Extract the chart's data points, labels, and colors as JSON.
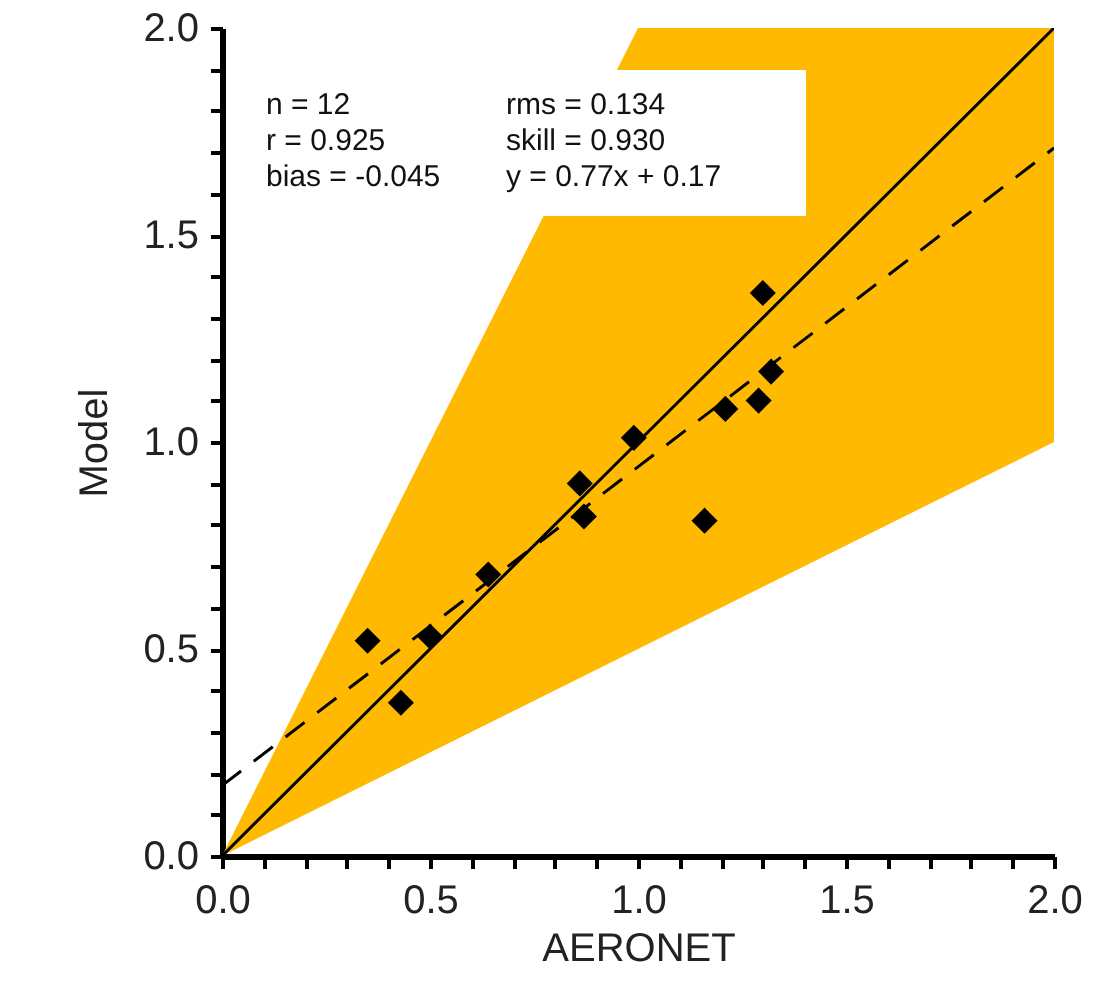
{
  "chart_data": {
    "type": "scatter",
    "xlabel": "AERONET",
    "ylabel": "Model",
    "xlim": [
      0,
      2
    ],
    "ylim": [
      0,
      2
    ],
    "xticks": [
      {
        "value": 0,
        "label": "0.0"
      },
      {
        "value": 0.1,
        "label": null
      },
      {
        "value": 0.2,
        "label": null
      },
      {
        "value": 0.3,
        "label": null
      },
      {
        "value": 0.4,
        "label": null
      },
      {
        "value": 0.5,
        "label": "0.5"
      },
      {
        "value": 0.6,
        "label": null
      },
      {
        "value": 0.7,
        "label": null
      },
      {
        "value": 0.8,
        "label": null
      },
      {
        "value": 0.9,
        "label": null
      },
      {
        "value": 1,
        "label": "1.0"
      },
      {
        "value": 1.1,
        "label": null
      },
      {
        "value": 1.2,
        "label": null
      },
      {
        "value": 1.3,
        "label": null
      },
      {
        "value": 1.4,
        "label": null
      },
      {
        "value": 1.5,
        "label": "1.5"
      },
      {
        "value": 1.6,
        "label": null
      },
      {
        "value": 1.7,
        "label": null
      },
      {
        "value": 1.8,
        "label": null
      },
      {
        "value": 1.9,
        "label": null
      },
      {
        "value": 2,
        "label": "2.0"
      }
    ],
    "yticks": [
      {
        "value": 0,
        "label": "0.0"
      },
      {
        "value": 0.1,
        "label": null
      },
      {
        "value": 0.2,
        "label": null
      },
      {
        "value": 0.3,
        "label": null
      },
      {
        "value": 0.4,
        "label": null
      },
      {
        "value": 0.5,
        "label": "0.5"
      },
      {
        "value": 0.6,
        "label": null
      },
      {
        "value": 0.7,
        "label": null
      },
      {
        "value": 0.8,
        "label": null
      },
      {
        "value": 0.9,
        "label": null
      },
      {
        "value": 1,
        "label": "1.0"
      },
      {
        "value": 1.1,
        "label": null
      },
      {
        "value": 1.2,
        "label": null
      },
      {
        "value": 1.3,
        "label": null
      },
      {
        "value": 1.4,
        "label": null
      },
      {
        "value": 1.5,
        "label": "1.5"
      },
      {
        "value": 1.6,
        "label": null
      },
      {
        "value": 1.7,
        "label": null
      },
      {
        "value": 1.8,
        "label": null
      },
      {
        "value": 1.9,
        "label": null
      },
      {
        "value": 2,
        "label": "2.0"
      }
    ],
    "grid": false,
    "annotations": [
      "n = 12",
      "rms = 0.134",
      "r = 0.925",
      "skill = 0.930",
      "bias = -0.045",
      "y = 0.77x + 0.17"
    ],
    "series": [
      {
        "type": "line",
        "color": "#000000",
        "line_style": "solid",
        "x": [
          0,
          1,
          2
        ],
        "values": [
          0,
          1,
          2
        ],
        "lower": [
          0,
          0.5,
          1
        ],
        "upper": [
          0,
          2,
          2
        ]
      },
      {
        "type": "line",
        "color": "#000000",
        "line_style": "dashed",
        "x": [
          0,
          2
        ],
        "values": [
          0.17,
          1.71
        ]
      },
      {
        "color": "#000000",
        "marker": "diamond",
        "x": [
          0.35,
          0.43,
          0.5,
          0.64,
          0.86,
          0.87,
          0.99,
          1.16,
          1.21,
          1.29,
          1.3,
          1.32
        ],
        "values": [
          0.52,
          0.37,
          0.53,
          0.68,
          0.9,
          0.82,
          1.01,
          0.81,
          1.08,
          1.1,
          1.36,
          1.17
        ]
      }
    ]
  }
}
